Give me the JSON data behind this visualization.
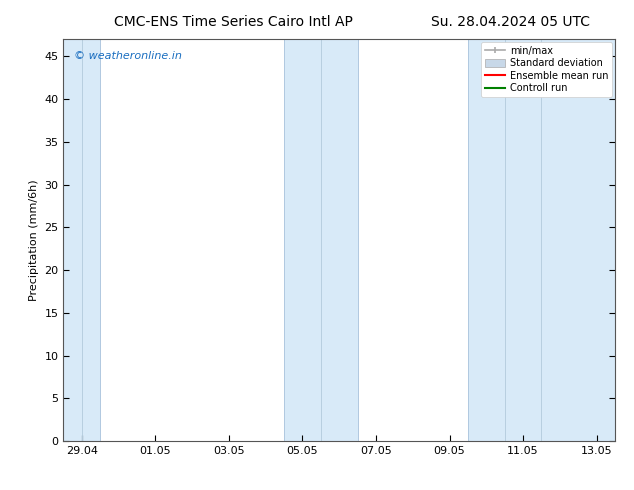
{
  "title_left": "CMC-ENS Time Series Cairo Intl AP",
  "title_right": "Su. 28.04.2024 05 UTC",
  "ylabel": "Precipitation (mm/6h)",
  "ylim": [
    0,
    47
  ],
  "yticks": [
    0,
    5,
    10,
    15,
    20,
    25,
    30,
    35,
    40,
    45
  ],
  "bg_color": "#ffffff",
  "plot_bg_color": "#ffffff",
  "shaded_band_color": "#d8eaf8",
  "watermark_text": "© weatheronline.in",
  "watermark_color": "#1a6ec0",
  "xlim": [
    0,
    15
  ],
  "x_tick_labels": [
    "29.04",
    "01.05",
    "03.05",
    "05.05",
    "07.05",
    "09.05",
    "11.05",
    "13.05"
  ],
  "x_tick_positions": [
    0.5,
    2.5,
    4.5,
    6.5,
    8.5,
    10.5,
    12.5,
    14.5
  ],
  "shaded_bands": [
    {
      "x_start": 0.0,
      "x_end": 1.0,
      "inner_lines": [
        0.5
      ]
    },
    {
      "x_start": 6.0,
      "x_end": 8.0,
      "inner_lines": [
        7.0
      ]
    },
    {
      "x_start": 11.0,
      "x_end": 15.0,
      "inner_lines": [
        12.0,
        13.0
      ]
    }
  ],
  "legend_labels": [
    "min/max",
    "Standard deviation",
    "Ensemble mean run",
    "Controll run"
  ],
  "legend_colors": [
    "#aaaaaa",
    "#c8d8e8",
    "#ff0000",
    "#008000"
  ],
  "font_color": "#000000",
  "title_fontsize": 10,
  "tick_fontsize": 8,
  "ylabel_fontsize": 8,
  "watermark_fontsize": 8,
  "legend_fontsize": 7
}
